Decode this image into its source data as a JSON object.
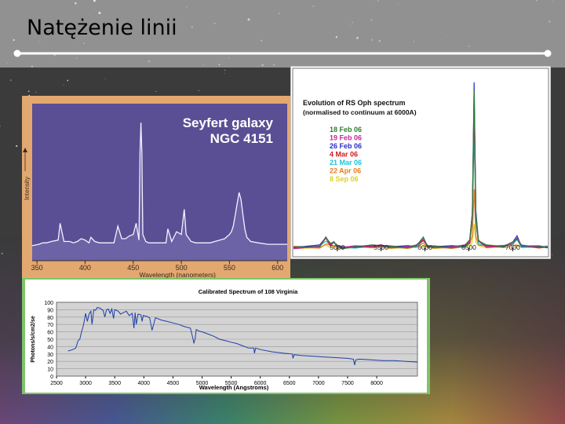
{
  "slide": {
    "title": "Natężenie linii"
  },
  "colors": {
    "accent": "#ffffff"
  },
  "chart_data": [
    {
      "type": "line",
      "title": "Seyfert galaxy NGC 4151",
      "title_lines": [
        "Seyfert galaxy",
        "NGC 4151"
      ],
      "xlabel": "Wavelength (nanometers)",
      "ylabel": "Intensity",
      "x_ticks": [
        350,
        400,
        450,
        500,
        550,
        600
      ],
      "xlim": [
        345,
        610
      ],
      "ylim": [
        0,
        100
      ],
      "background": "#5a4f94",
      "series": [
        {
          "x": [
            345,
            352,
            356,
            360,
            365,
            372,
            374,
            378,
            384,
            388,
            392,
            396,
            400,
            404,
            406,
            410,
            415,
            420,
            425,
            430,
            432,
            434,
            438,
            442,
            446,
            450,
            453,
            456,
            457,
            458,
            459,
            460,
            463,
            466,
            470,
            475,
            480,
            484,
            486,
            490,
            495,
            500,
            503,
            505,
            510,
            515,
            520,
            525,
            530,
            535,
            540,
            545,
            550,
            552,
            554,
            556,
            558,
            560,
            562,
            564,
            566,
            568,
            572,
            580,
            590,
            600,
            610
          ],
          "y": [
            4,
            5,
            6,
            6,
            7,
            8,
            20,
            7,
            7,
            6,
            7,
            9,
            8,
            6,
            10,
            7,
            6,
            6,
            6,
            6,
            12,
            18,
            9,
            9,
            11,
            12,
            20,
            8,
            70,
            92,
            70,
            12,
            7,
            6,
            6,
            6,
            6,
            6,
            16,
            7,
            14,
            12,
            30,
            12,
            7,
            6,
            6,
            6,
            6,
            7,
            8,
            9,
            12,
            14,
            18,
            26,
            34,
            42,
            37,
            26,
            16,
            10,
            7,
            6,
            5,
            5,
            5
          ]
        }
      ]
    },
    {
      "type": "line",
      "title": "Evolution of RS Oph spectrum",
      "subtitle": "(normalised to continuum at 6000A)",
      "x_ticks": [
        5000,
        5500,
        6000,
        6500,
        7000
      ],
      "xlim": [
        4500,
        7400
      ],
      "ylim": [
        0.8,
        10.5
      ],
      "legend_position": "top-left",
      "x_base": [
        4500,
        4800,
        4870,
        4920,
        4960,
        5000,
        5050,
        5200,
        5400,
        5500,
        5600,
        5800,
        5900,
        5980,
        6030,
        6100,
        6300,
        6450,
        6510,
        6540,
        6560,
        6580,
        6610,
        6700,
        6900,
        7000,
        7050,
        7100,
        7300,
        7400
      ],
      "line_shape": [
        0,
        0.1,
        0.6,
        0.2,
        0.35,
        0.1,
        0,
        0.05,
        0.1,
        0.15,
        0.05,
        0.05,
        0.1,
        0.55,
        0.1,
        0.05,
        0.05,
        0.1,
        0.4,
        2.0,
        9.2,
        2.0,
        0.4,
        0.1,
        0.1,
        0.3,
        0.6,
        0.1,
        0.05,
        0.05
      ],
      "series": [
        {
          "name": "18 Feb 06",
          "color": "#2f7d32",
          "scale": 0.95
        },
        {
          "name": "19 Feb 06",
          "color": "#c0289c",
          "scale": 0.9
        },
        {
          "name": "26 Feb 06",
          "color": "#2c2cc0",
          "scale": 1.0
        },
        {
          "name": "4 Mar 06",
          "color": "#d21a1a",
          "scale": 0.85
        },
        {
          "name": "21 Mar 06",
          "color": "#22c3d8",
          "scale": 0.7
        },
        {
          "name": "22 Apr 06",
          "color": "#e87d1c",
          "scale": 0.35
        },
        {
          "name": "8 Sep 06",
          "color": "#e0d028",
          "scale": 0.15
        }
      ]
    },
    {
      "type": "line",
      "title": "Calibrated Spectrum of 108 Virginia",
      "xlabel": "Wavelength (Angstroms)",
      "ylabel": "Photons/s/cm2/se",
      "x_ticks": [
        2500,
        3000,
        3500,
        4000,
        4500,
        5000,
        5500,
        6000,
        6500,
        7000,
        7500,
        8000
      ],
      "x_tick_labels": [
        "2500",
        "3000",
        "3500",
        "4000",
        "4500",
        "5000",
        "5500",
        "6000",
        "6500",
        "7000",
        "7500",
        "8000"
      ],
      "y_ticks": [
        0,
        10,
        20,
        30,
        40,
        50,
        60,
        70,
        80,
        90,
        100
      ],
      "y_tick_labels": [
        "0",
        "10",
        "20",
        "30",
        "40",
        "50",
        "60",
        "70",
        "80",
        "90",
        "100"
      ],
      "xlim": [
        2500,
        8700
      ],
      "ylim": [
        0,
        100
      ],
      "grid": true,
      "background": "#d3d3d3",
      "series": [
        {
          "x": [
            2700,
            2780,
            2830,
            2870,
            2900,
            2930,
            2960,
            2980,
            3000,
            3030,
            3060,
            3090,
            3110,
            3140,
            3170,
            3200,
            3250,
            3300,
            3330,
            3360,
            3390,
            3420,
            3450,
            3480,
            3500,
            3560,
            3600,
            3650,
            3700,
            3750,
            3800,
            3830,
            3850,
            3870,
            3900,
            3950,
            3970,
            3990,
            4050,
            4100,
            4140,
            4200,
            4300,
            4400,
            4500,
            4600,
            4700,
            4800,
            4840,
            4860,
            4880,
            4900,
            4950,
            5000,
            5100,
            5200,
            5300,
            5400,
            5500,
            5600,
            5700,
            5800,
            5890,
            5900,
            5920,
            6000,
            6200,
            6400,
            6550,
            6563,
            6580,
            6700,
            6900,
            7100,
            7300,
            7500,
            7600,
            7620,
            7640,
            7700,
            7900,
            8100,
            8300,
            8500,
            8700
          ],
          "y": [
            34,
            36,
            38,
            48,
            50,
            60,
            68,
            76,
            85,
            74,
            84,
            88,
            70,
            90,
            89,
            93,
            92,
            89,
            80,
            90,
            91,
            85,
            91,
            78,
            90,
            88,
            84,
            86,
            88,
            82,
            85,
            65,
            86,
            70,
            84,
            83,
            74,
            82,
            81,
            79,
            62,
            79,
            76,
            74,
            72,
            70,
            67,
            65,
            52,
            45,
            50,
            63,
            61,
            60,
            57,
            54,
            50,
            48,
            46,
            44,
            41,
            38,
            38,
            31,
            38,
            36,
            33,
            31,
            30,
            24,
            29,
            28,
            27,
            26,
            25,
            24,
            23,
            15,
            22,
            23,
            22,
            21,
            21,
            20,
            19
          ]
        }
      ]
    }
  ]
}
